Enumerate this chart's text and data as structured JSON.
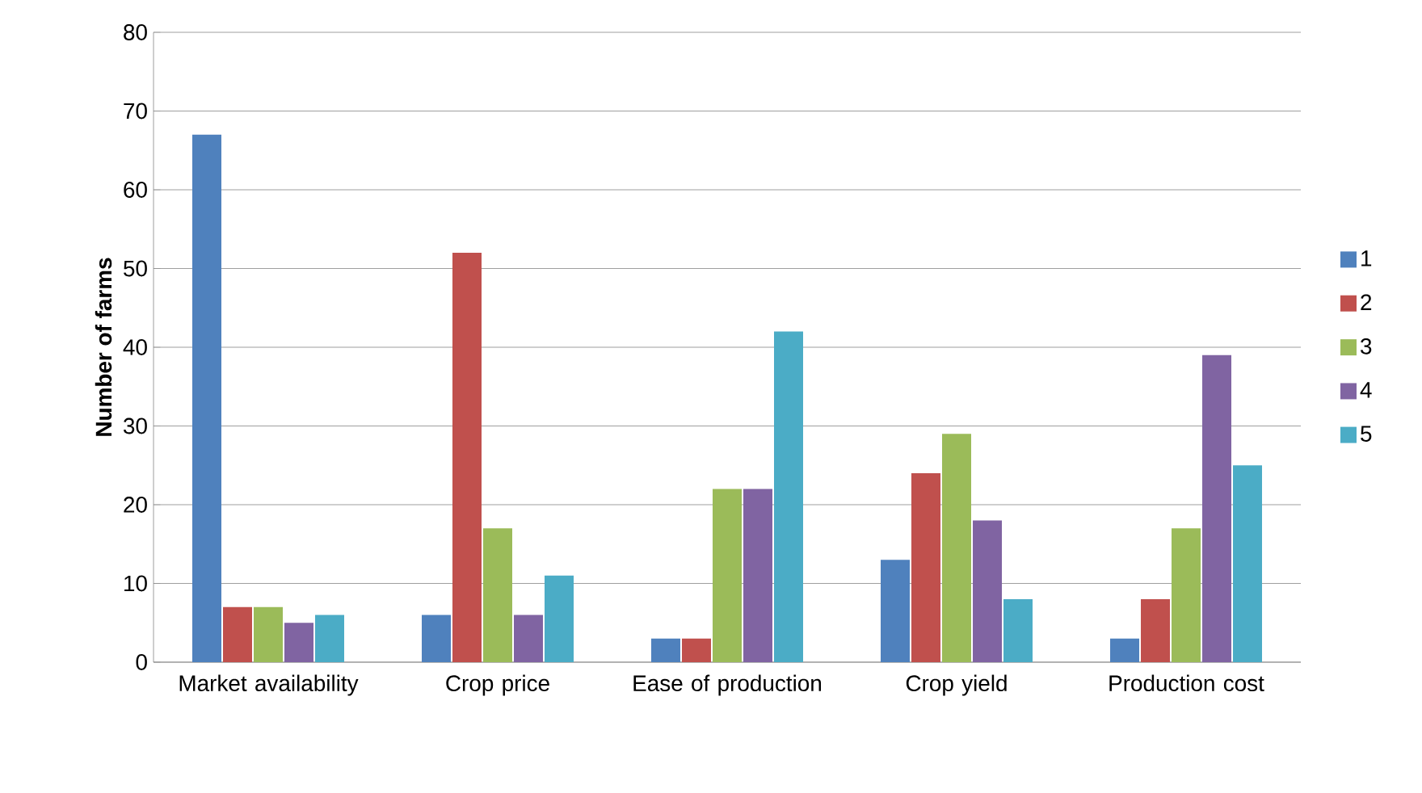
{
  "chart_data": {
    "type": "bar",
    "ylabel": "Number of farms",
    "categories": [
      "Market availability",
      "Crop price",
      "Ease of production",
      "Crop yield",
      "Production cost"
    ],
    "series": [
      {
        "name": "1",
        "color": "#4f81bd",
        "values": [
          67,
          6,
          3,
          13,
          3
        ]
      },
      {
        "name": "2",
        "color": "#c0504d",
        "values": [
          7,
          52,
          3,
          24,
          8
        ]
      },
      {
        "name": "3",
        "color": "#9bbb59",
        "values": [
          7,
          17,
          22,
          29,
          17
        ]
      },
      {
        "name": "4",
        "color": "#8064a2",
        "values": [
          5,
          6,
          22,
          18,
          39
        ]
      },
      {
        "name": "5",
        "color": "#4bacc6",
        "values": [
          6,
          11,
          42,
          8,
          25
        ]
      }
    ],
    "ylim": [
      0,
      80
    ],
    "yticks": [
      0,
      10,
      20,
      30,
      40,
      50,
      60,
      70,
      80
    ],
    "grid": "y",
    "legend": "right"
  }
}
